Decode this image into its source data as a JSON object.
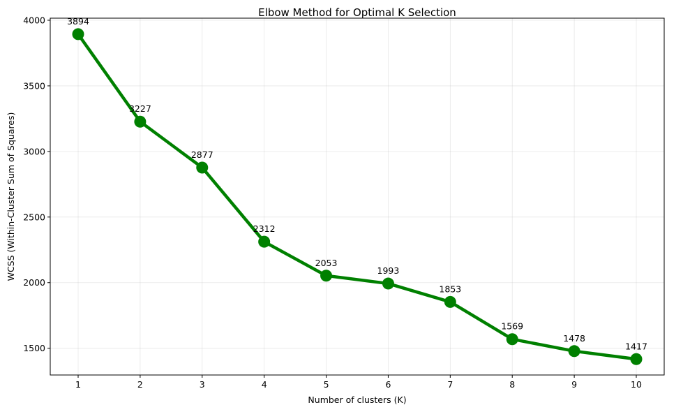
{
  "chart_data": {
    "type": "line",
    "title": "Elbow Method for Optimal K Selection",
    "xlabel": "Number of clusters (K)",
    "ylabel": "WCSS (Within-Cluster Sum of Squares)",
    "x": [
      1,
      2,
      3,
      4,
      5,
      6,
      7,
      8,
      9,
      10
    ],
    "xlim": [
      0.55,
      10.45
    ],
    "ylim": [
      1296,
      4016
    ],
    "xticks": [
      1,
      2,
      3,
      4,
      5,
      6,
      7,
      8,
      9,
      10
    ],
    "yticks": [
      1500,
      2000,
      2500,
      3000,
      3500,
      4000
    ],
    "grid": true,
    "series": [
      {
        "values": [
          3894,
          3227,
          2877,
          2312,
          2053,
          1993,
          1853,
          1569,
          1478,
          1417
        ],
        "labels": [
          "3894",
          "3227",
          "2877",
          "2312",
          "2053",
          "1993",
          "1853",
          "1569",
          "1478",
          "1417"
        ],
        "color": "#008000",
        "marker": "circle"
      }
    ]
  }
}
